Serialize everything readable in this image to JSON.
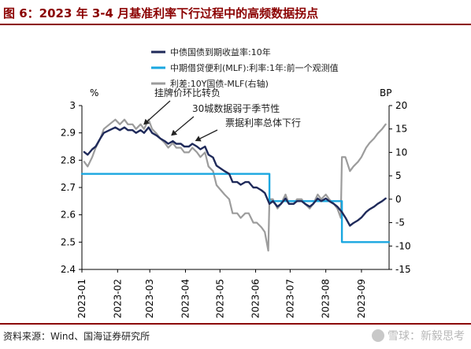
{
  "header": {
    "title": "图 6：2023 年 3-4 月基准利率下行过程中的高频数据拐点"
  },
  "footer": {
    "source": "资料来源：Wind、国海证券研究所",
    "watermark": "雪球：新毅思考"
  },
  "colors": {
    "title": "#8b0000",
    "yield": "#1f2a5a",
    "mlf": "#1aa7e0",
    "spread": "#9c9c9c",
    "annotation_arrow": "#222222"
  },
  "chart_data": {
    "type": "line",
    "left_axis": {
      "unit_label": "%",
      "min": 2.4,
      "max": 3.0,
      "ticks": [
        "3",
        "2.9",
        "2.8",
        "2.7",
        "2.6",
        "2.5",
        "2.4"
      ]
    },
    "right_axis": {
      "unit_label": "BP",
      "min": -15,
      "max": 20,
      "ticks": [
        "20",
        "15",
        "10",
        "5",
        "0",
        "-5",
        "-10",
        "-15"
      ]
    },
    "x_axis": {
      "min": "2023-01-01",
      "max": "2023-09-25",
      "ticks": [
        {
          "date": "2023-01-01",
          "label": "2023-01"
        },
        {
          "date": "2023-02-01",
          "label": "2023-02"
        },
        {
          "date": "2023-03-01",
          "label": "2023-03"
        },
        {
          "date": "2023-04-01",
          "label": "2023-04"
        },
        {
          "date": "2023-05-01",
          "label": "2023-05"
        },
        {
          "date": "2023-06-01",
          "label": "2023-06"
        },
        {
          "date": "2023-07-01",
          "label": "2023-07"
        },
        {
          "date": "2023-08-01",
          "label": "2023-08"
        },
        {
          "date": "2023-09-01",
          "label": "2023-09"
        }
      ]
    },
    "grid": false,
    "legend_position": "top-right",
    "series": [
      {
        "name": "中债国债到期收益率:10年",
        "axis": "left",
        "style": "solid",
        "points": [
          [
            "2023-01-03",
            2.83
          ],
          [
            "2023-01-06",
            2.82
          ],
          [
            "2023-01-10",
            2.84
          ],
          [
            "2023-01-13",
            2.85
          ],
          [
            "2023-01-17",
            2.88
          ],
          [
            "2023-01-20",
            2.9
          ],
          [
            "2023-01-30",
            2.92
          ],
          [
            "2023-02-03",
            2.91
          ],
          [
            "2023-02-07",
            2.92
          ],
          [
            "2023-02-10",
            2.91
          ],
          [
            "2023-02-14",
            2.91
          ],
          [
            "2023-02-17",
            2.9
          ],
          [
            "2023-02-21",
            2.91
          ],
          [
            "2023-02-24",
            2.9
          ],
          [
            "2023-02-28",
            2.92
          ],
          [
            "2023-03-03",
            2.9
          ],
          [
            "2023-03-07",
            2.89
          ],
          [
            "2023-03-10",
            2.88
          ],
          [
            "2023-03-14",
            2.87
          ],
          [
            "2023-03-17",
            2.86
          ],
          [
            "2023-03-21",
            2.87
          ],
          [
            "2023-03-24",
            2.86
          ],
          [
            "2023-03-28",
            2.86
          ],
          [
            "2023-03-31",
            2.85
          ],
          [
            "2023-04-04",
            2.85
          ],
          [
            "2023-04-07",
            2.86
          ],
          [
            "2023-04-11",
            2.85
          ],
          [
            "2023-04-14",
            2.84
          ],
          [
            "2023-04-18",
            2.85
          ],
          [
            "2023-04-21",
            2.82
          ],
          [
            "2023-04-25",
            2.81
          ],
          [
            "2023-04-28",
            2.78
          ],
          [
            "2023-05-05",
            2.76
          ],
          [
            "2023-05-09",
            2.75
          ],
          [
            "2023-05-12",
            2.72
          ],
          [
            "2023-05-16",
            2.72
          ],
          [
            "2023-05-19",
            2.71
          ],
          [
            "2023-05-23",
            2.72
          ],
          [
            "2023-05-26",
            2.72
          ],
          [
            "2023-05-30",
            2.7
          ],
          [
            "2023-06-02",
            2.7
          ],
          [
            "2023-06-06",
            2.69
          ],
          [
            "2023-06-09",
            2.68
          ],
          [
            "2023-06-13",
            2.64
          ],
          [
            "2023-06-16",
            2.65
          ],
          [
            "2023-06-20",
            2.63
          ],
          [
            "2023-06-23",
            2.64
          ],
          [
            "2023-06-27",
            2.66
          ],
          [
            "2023-06-30",
            2.64
          ],
          [
            "2023-07-04",
            2.64
          ],
          [
            "2023-07-07",
            2.65
          ],
          [
            "2023-07-11",
            2.65
          ],
          [
            "2023-07-14",
            2.64
          ],
          [
            "2023-07-18",
            2.63
          ],
          [
            "2023-07-21",
            2.64
          ],
          [
            "2023-07-25",
            2.66
          ],
          [
            "2023-07-28",
            2.65
          ],
          [
            "2023-08-01",
            2.66
          ],
          [
            "2023-08-04",
            2.65
          ],
          [
            "2023-08-08",
            2.64
          ],
          [
            "2023-08-11",
            2.63
          ],
          [
            "2023-08-15",
            2.61
          ],
          [
            "2023-08-18",
            2.59
          ],
          [
            "2023-08-22",
            2.56
          ],
          [
            "2023-08-25",
            2.57
          ],
          [
            "2023-08-29",
            2.58
          ],
          [
            "2023-09-01",
            2.59
          ],
          [
            "2023-09-05",
            2.61
          ],
          [
            "2023-09-08",
            2.62
          ],
          [
            "2023-09-12",
            2.63
          ],
          [
            "2023-09-15",
            2.64
          ],
          [
            "2023-09-19",
            2.65
          ],
          [
            "2023-09-22",
            2.66
          ]
        ]
      },
      {
        "name": "中期借贷便利(MLF):利率:1年:前一个观测值",
        "axis": "left",
        "style": "step",
        "points": [
          [
            "2023-01-01",
            2.75
          ],
          [
            "2023-06-13",
            2.75
          ],
          [
            "2023-06-13",
            2.65
          ],
          [
            "2023-08-15",
            2.65
          ],
          [
            "2023-08-15",
            2.5
          ],
          [
            "2023-09-25",
            2.5
          ]
        ]
      },
      {
        "name": "利差:10Y国债-MLF(右轴)",
        "axis": "right",
        "style": "solid",
        "points": [
          [
            "2023-01-03",
            8
          ],
          [
            "2023-01-06",
            7
          ],
          [
            "2023-01-10",
            9
          ],
          [
            "2023-01-13",
            11
          ],
          [
            "2023-01-17",
            13
          ],
          [
            "2023-01-20",
            15
          ],
          [
            "2023-01-30",
            17
          ],
          [
            "2023-02-03",
            16
          ],
          [
            "2023-02-07",
            17
          ],
          [
            "2023-02-10",
            16
          ],
          [
            "2023-02-14",
            16
          ],
          [
            "2023-02-17",
            15
          ],
          [
            "2023-02-21",
            16
          ],
          [
            "2023-02-24",
            15
          ],
          [
            "2023-02-28",
            17
          ],
          [
            "2023-03-03",
            15
          ],
          [
            "2023-03-07",
            14
          ],
          [
            "2023-03-10",
            13
          ],
          [
            "2023-03-14",
            12
          ],
          [
            "2023-03-17",
            11
          ],
          [
            "2023-03-21",
            12
          ],
          [
            "2023-03-24",
            11
          ],
          [
            "2023-03-28",
            11
          ],
          [
            "2023-03-31",
            10
          ],
          [
            "2023-04-04",
            10
          ],
          [
            "2023-04-07",
            11
          ],
          [
            "2023-04-11",
            10
          ],
          [
            "2023-04-14",
            9
          ],
          [
            "2023-04-18",
            10
          ],
          [
            "2023-04-21",
            7
          ],
          [
            "2023-04-25",
            6
          ],
          [
            "2023-04-28",
            3
          ],
          [
            "2023-05-05",
            1
          ],
          [
            "2023-05-09",
            0
          ],
          [
            "2023-05-12",
            -3
          ],
          [
            "2023-05-16",
            -3
          ],
          [
            "2023-05-19",
            -4
          ],
          [
            "2023-05-23",
            -3
          ],
          [
            "2023-05-26",
            -3
          ],
          [
            "2023-05-30",
            -5
          ],
          [
            "2023-06-02",
            -5
          ],
          [
            "2023-06-06",
            -6
          ],
          [
            "2023-06-09",
            -7
          ],
          [
            "2023-06-12",
            -11
          ],
          [
            "2023-06-13",
            0
          ],
          [
            "2023-06-16",
            0
          ],
          [
            "2023-06-20",
            -2
          ],
          [
            "2023-06-23",
            -1
          ],
          [
            "2023-06-27",
            1
          ],
          [
            "2023-06-30",
            -1
          ],
          [
            "2023-07-04",
            -1
          ],
          [
            "2023-07-07",
            0
          ],
          [
            "2023-07-11",
            0
          ],
          [
            "2023-07-14",
            -1
          ],
          [
            "2023-07-18",
            -2
          ],
          [
            "2023-07-21",
            -1
          ],
          [
            "2023-07-25",
            1
          ],
          [
            "2023-07-28",
            0
          ],
          [
            "2023-08-01",
            1
          ],
          [
            "2023-08-04",
            0
          ],
          [
            "2023-08-08",
            -1
          ],
          [
            "2023-08-11",
            -2
          ],
          [
            "2023-08-14",
            -4
          ],
          [
            "2023-08-15",
            9
          ],
          [
            "2023-08-18",
            9
          ],
          [
            "2023-08-22",
            6
          ],
          [
            "2023-08-25",
            7
          ],
          [
            "2023-08-29",
            8
          ],
          [
            "2023-09-01",
            9
          ],
          [
            "2023-09-05",
            11
          ],
          [
            "2023-09-08",
            12
          ],
          [
            "2023-09-12",
            13
          ],
          [
            "2023-09-15",
            14
          ],
          [
            "2023-09-19",
            15
          ],
          [
            "2023-09-22",
            16
          ]
        ]
      }
    ],
    "annotations": [
      {
        "text": "挂牌价环比转负",
        "date": "2023-02-24",
        "value": 2.92
      },
      {
        "text": "30城数据弱于季节性",
        "date": "2023-03-20",
        "value": 2.88
      },
      {
        "text": "票据利率总体下行",
        "date": "2023-04-10",
        "value": 2.86
      }
    ]
  }
}
